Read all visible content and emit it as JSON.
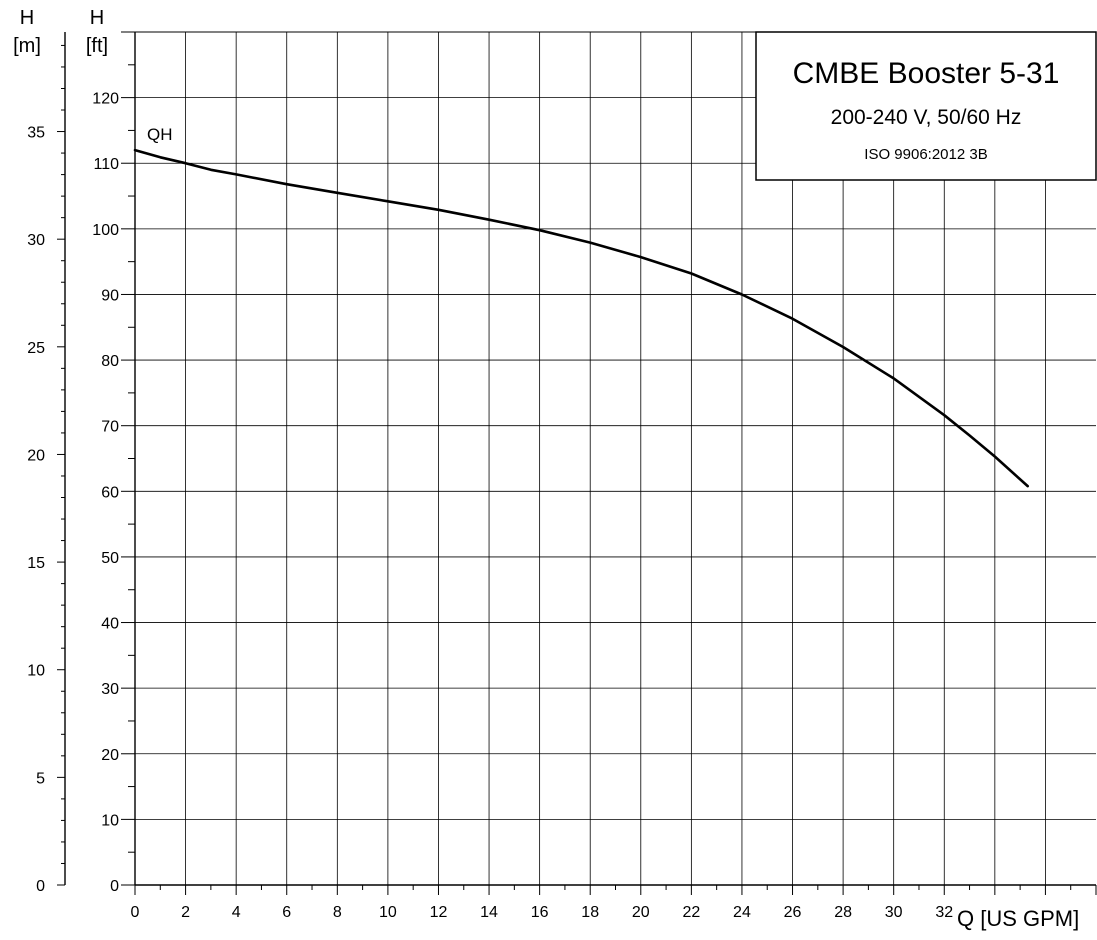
{
  "chart_data": {
    "type": "line",
    "title": "CMBE Booster 5-31",
    "subtitle": "200-240 V, 50/60 Hz",
    "standard": "ISO 9906:2012 3B",
    "xlabel": "Q [US GPM]",
    "ylabel_left": {
      "symbol": "H",
      "unit": "[m]"
    },
    "ylabel_right": {
      "symbol": "H",
      "unit": "[ft]"
    },
    "xlim": [
      0,
      38
    ],
    "ylim_ft": [
      0,
      130
    ],
    "ylim_m": [
      0,
      39.624
    ],
    "x_ticks": [
      0,
      2,
      4,
      6,
      8,
      10,
      12,
      14,
      16,
      18,
      20,
      22,
      24,
      26,
      28,
      30,
      32
    ],
    "y_ticks_ft": [
      0,
      10,
      20,
      30,
      40,
      50,
      60,
      70,
      80,
      90,
      100,
      110,
      120
    ],
    "y_ticks_m": [
      0,
      5,
      10,
      15,
      20,
      25,
      30,
      35
    ],
    "grid": true,
    "series": [
      {
        "name": "QH",
        "x": [
          0,
          1,
          2,
          3,
          4,
          6,
          8,
          10,
          12,
          14,
          16,
          18,
          20,
          22,
          24,
          26,
          28,
          30,
          32,
          33,
          34,
          35.3
        ],
        "y": [
          112,
          110.9,
          110,
          109,
          108.3,
          106.8,
          105.5,
          104.2,
          102.9,
          101.4,
          99.8,
          97.9,
          95.7,
          93.2,
          90,
          86.3,
          82,
          77.2,
          71.6,
          68.5,
          65.3,
          60.8
        ]
      }
    ]
  }
}
